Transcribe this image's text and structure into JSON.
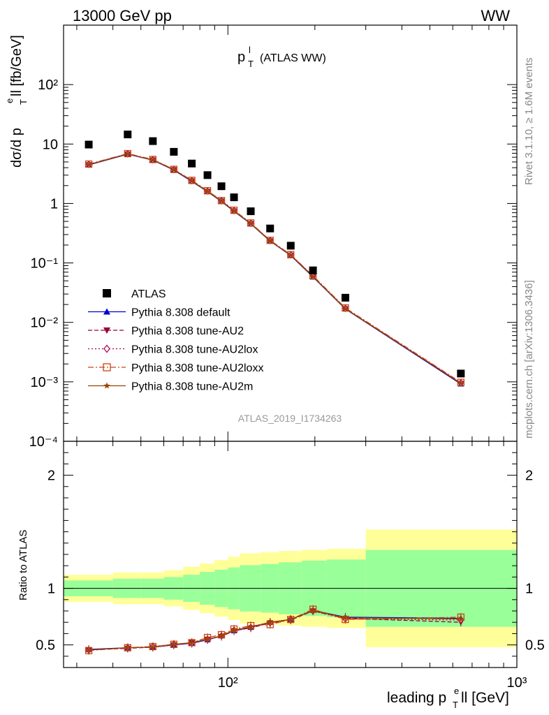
{
  "header": {
    "left": "13000 GeV pp",
    "right": "WW",
    "plot_title": "p",
    "plot_title_sup": "l",
    "plot_title_sub": "T",
    "plot_title_rest": "(ATLAS WW)",
    "analysis_id": "ATLAS_2019_I1734263",
    "side_rivet": "Rivet 3.1.10, ≥ 1.6M events",
    "side_mcplots": "mcplots.cern.ch [arXiv:1306.3436]"
  },
  "axes": {
    "ylabel_main": "dσ/d p",
    "ylabel_main_sup": "e",
    "ylabel_main_sub": "T",
    "ylabel_main_rest": "ll [fb/GeV]",
    "ylabel_ratio": "Ratio to ATLAS",
    "xlabel": "leading p",
    "xlabel_sup": "e",
    "xlabel_sub": "T",
    "xlabel_rest": "ll [GeV]"
  },
  "chart_data": {
    "type": "line",
    "x_scale": "log",
    "xlim": [
      27,
      1000
    ],
    "main_y_scale": "log",
    "main_ylim": [
      0.0001,
      1000
    ],
    "ratio_ylim": [
      0.3,
      2.3
    ],
    "x": [
      33,
      45,
      55,
      65,
      75,
      85,
      95,
      105,
      120,
      140,
      165,
      197,
      255,
      640
    ],
    "bin_edges": [
      27,
      40,
      50,
      60,
      70,
      80,
      90,
      100,
      110,
      130,
      150,
      180,
      220,
      300,
      1000
    ],
    "data": {
      "name": "ATLAS",
      "values": [
        9.8,
        14.5,
        11.2,
        7.4,
        4.7,
        3.0,
        1.95,
        1.27,
        0.74,
        0.38,
        0.195,
        0.075,
        0.026,
        0.00138
      ]
    },
    "series": [
      {
        "name": "Pythia 8.308 default",
        "color": "#0000cc",
        "marker": "triangle-up",
        "dash": "",
        "values": [
          4.45,
          6.75,
          5.35,
          3.65,
          2.35,
          1.58,
          1.08,
          0.74,
          0.455,
          0.233,
          0.133,
          0.058,
          0.0168,
          0.00092
        ],
        "ratio": [
          0.46,
          0.475,
          0.48,
          0.5,
          0.515,
          0.545,
          0.58,
          0.625,
          0.655,
          0.7,
          0.725,
          0.805,
          0.745,
          0.735
        ]
      },
      {
        "name": "Pythia 8.308 tune-AU2",
        "color": "#990033",
        "marker": "triangle-down",
        "dash": "6,3",
        "values": [
          4.5,
          6.8,
          5.4,
          3.7,
          2.4,
          1.6,
          1.1,
          0.75,
          0.46,
          0.235,
          0.135,
          0.059,
          0.017,
          0.00094
        ],
        "ratio": [
          0.455,
          0.47,
          0.48,
          0.5,
          0.52,
          0.55,
          0.575,
          0.625,
          0.65,
          0.695,
          0.72,
          0.8,
          0.735,
          0.7
        ]
      },
      {
        "name": "Pythia 8.308 tune-AU2lox",
        "color": "#aa0055",
        "marker": "diamond",
        "dash": "2,3",
        "values": [
          4.55,
          6.85,
          5.45,
          3.72,
          2.42,
          1.62,
          1.11,
          0.76,
          0.465,
          0.238,
          0.137,
          0.06,
          0.0172,
          0.00096
        ],
        "ratio": [
          0.455,
          0.475,
          0.485,
          0.505,
          0.515,
          0.55,
          0.58,
          0.63,
          0.655,
          0.695,
          0.725,
          0.8,
          0.73,
          0.72
        ]
      },
      {
        "name": "Pythia 8.308 tune-AU2loxx",
        "color": "#cc4411",
        "marker": "square-open",
        "dash": "8,3,2,3",
        "values": [
          4.6,
          6.9,
          5.5,
          3.75,
          2.45,
          1.64,
          1.12,
          0.77,
          0.47,
          0.24,
          0.138,
          0.061,
          0.0175,
          0.00098
        ],
        "ratio": [
          0.45,
          0.475,
          0.485,
          0.505,
          0.52,
          0.565,
          0.59,
          0.64,
          0.67,
          0.68,
          0.725,
          0.815,
          0.725,
          0.745
        ]
      },
      {
        "name": "Pythia 8.308 tune-AU2m",
        "color": "#994400",
        "marker": "star",
        "dash": "",
        "values": [
          4.5,
          6.8,
          5.4,
          3.7,
          2.4,
          1.6,
          1.1,
          0.75,
          0.46,
          0.236,
          0.135,
          0.059,
          0.017,
          0.00095
        ],
        "ratio": [
          0.455,
          0.475,
          0.48,
          0.505,
          0.52,
          0.55,
          0.58,
          0.63,
          0.66,
          0.7,
          0.725,
          0.805,
          0.74,
          0.73
        ]
      }
    ],
    "ratio_bands": {
      "green_color": "#99ff99",
      "yellow_color": "#ffff99",
      "green_half_width": [
        0.07,
        0.085,
        0.085,
        0.1,
        0.12,
        0.145,
        0.165,
        0.185,
        0.205,
        0.215,
        0.23,
        0.245,
        0.255,
        0.34
      ],
      "yellow_half_width": [
        0.12,
        0.14,
        0.14,
        0.16,
        0.19,
        0.22,
        0.25,
        0.28,
        0.31,
        0.32,
        0.33,
        0.34,
        0.35,
        0.52
      ]
    },
    "main_y_ticks": [
      "10⁻⁴",
      "10⁻³",
      "10⁻²",
      "10⁻¹",
      "1",
      "10",
      "10²"
    ],
    "ratio_y_ticks": [
      "0.5",
      "1",
      "2"
    ],
    "x_ticks": [
      "10²",
      "10³"
    ],
    "legend": "left-middle",
    "grid": false
  }
}
